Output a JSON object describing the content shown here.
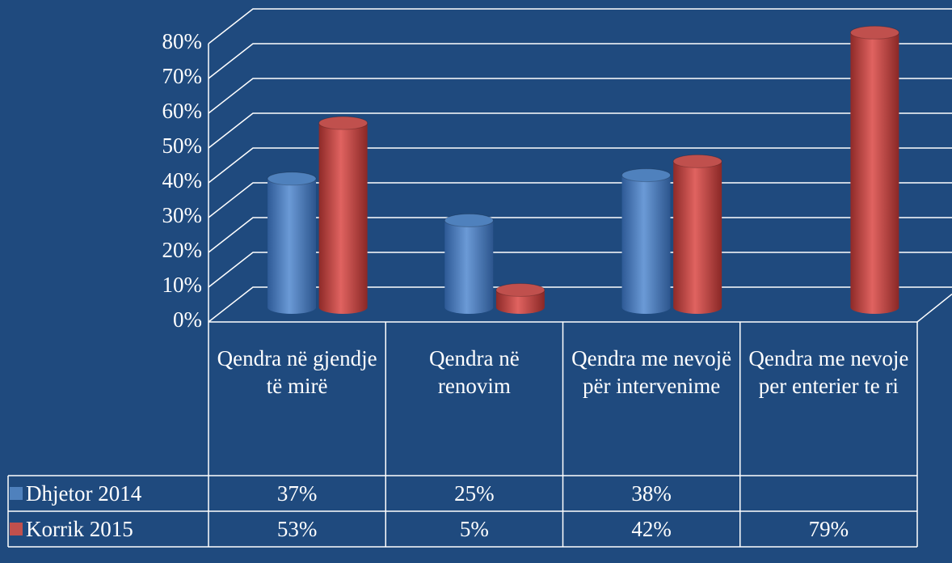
{
  "chart_data": {
    "type": "bar3d",
    "categories": [
      "Qendra në gjendje të mirë",
      "Qendra në renovim",
      "Qendra me nevojë për intervenime",
      "Qendra me nevoje per enterier te ri"
    ],
    "series": [
      {
        "name": "Dhjetor 2014",
        "color": "#4f81bd",
        "values": [
          37,
          25,
          38,
          null
        ],
        "value_labels": [
          "37%",
          "25%",
          "38%",
          null
        ]
      },
      {
        "name": "Korrik 2015",
        "color": "#c0504d",
        "values": [
          53,
          5,
          42,
          79
        ],
        "value_labels": [
          "53%",
          "5%",
          "42%",
          "79%"
        ]
      }
    ],
    "ylim": [
      0,
      80
    ],
    "yticks": [
      {
        "value": 0,
        "label": "0%"
      },
      {
        "value": 10,
        "label": "10%"
      },
      {
        "value": 20,
        "label": "20%"
      },
      {
        "value": 30,
        "label": "30%"
      },
      {
        "value": 40,
        "label": "40%"
      },
      {
        "value": 50,
        "label": "50%"
      },
      {
        "value": 60,
        "label": "60%"
      },
      {
        "value": 70,
        "label": "70%"
      },
      {
        "value": 80,
        "label": "80%"
      }
    ],
    "grid": true
  }
}
